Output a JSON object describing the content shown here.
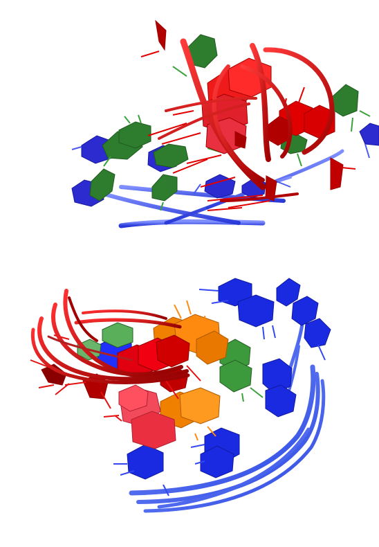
{
  "figure": {
    "panels": [
      {
        "id": "top-view",
        "colors": {
          "backbone": "#d80000",
          "strand2": "#3a50f0",
          "base_green": "#2f8a2f",
          "base_blue": "#2222cc",
          "base_red": "#e00000"
        }
      },
      {
        "id": "bottom-view",
        "colors": {
          "backbone": "#cc0000",
          "strand2": "#3a64ff",
          "base_orange": "#f07a00",
          "base_pink": "#f04050",
          "base_green": "#3c9a3c",
          "base_blue": "#1a2ae0"
        }
      }
    ]
  }
}
